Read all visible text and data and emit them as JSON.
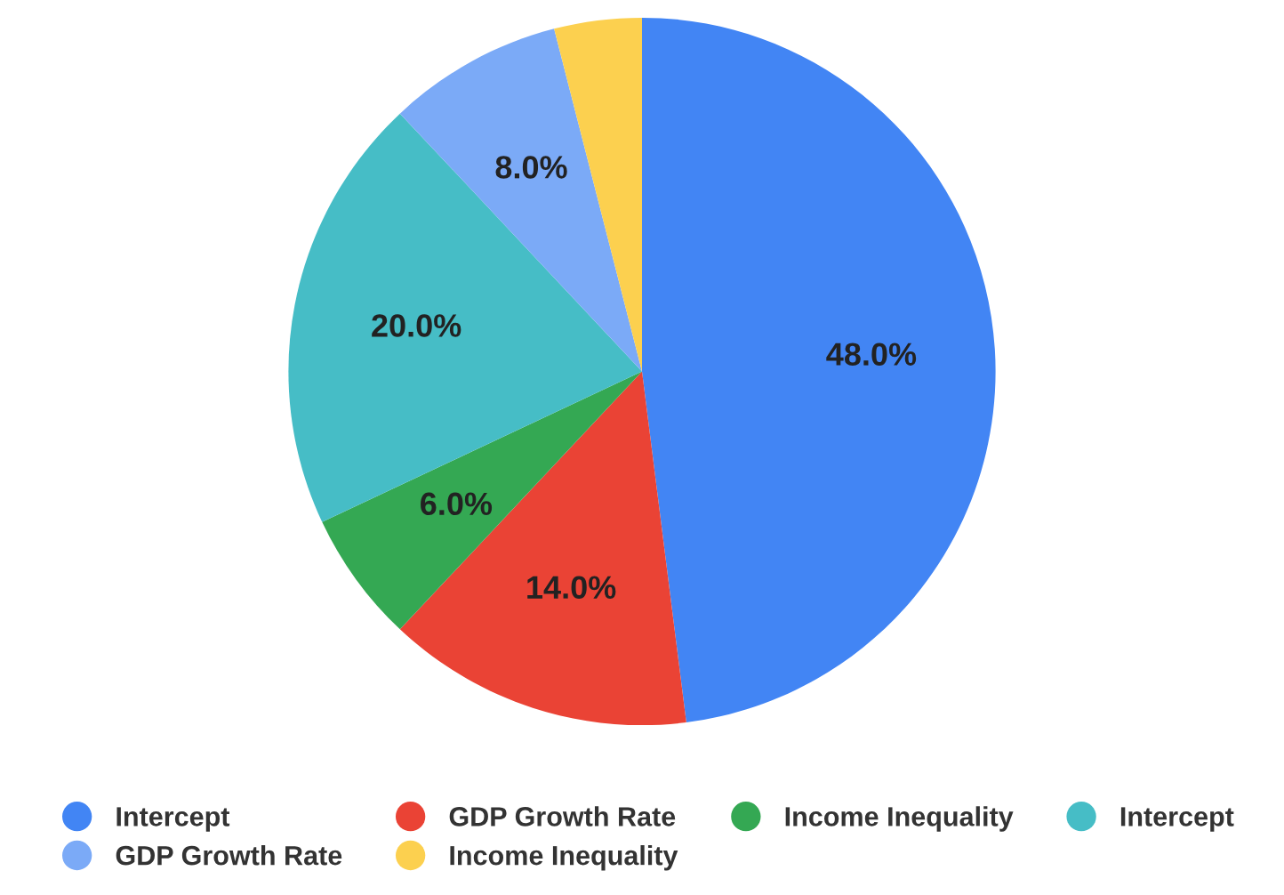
{
  "chart_data": {
    "type": "pie",
    "categories": [
      "Intercept",
      "GDP Growth Rate",
      "Income Inequality",
      "Intercept",
      "GDP Growth Rate",
      "Income Inequality"
    ],
    "values": [
      48,
      14,
      6,
      20,
      8,
      4
    ],
    "colors": [
      "#4285f4",
      "#ea4335",
      "#34a853",
      "#46bdc6",
      "#7baaf7",
      "#fcd04f"
    ],
    "value_labels": [
      "48.0%",
      "14.0%",
      "6.0%",
      "20.0%",
      "8.0%",
      null
    ],
    "legend": "bottom"
  }
}
